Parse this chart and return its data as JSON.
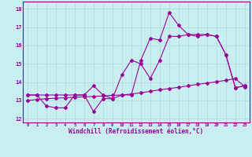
{
  "title": "",
  "xlabel": "Windchill (Refroidissement éolien,°C)",
  "bg_color": "#c8eef0",
  "grid_color": "#b0d8da",
  "line_color": "#990099",
  "x_values": [
    0,
    1,
    2,
    3,
    4,
    5,
    6,
    7,
    8,
    9,
    10,
    11,
    12,
    13,
    14,
    15,
    16,
    17,
    18,
    19,
    20,
    21,
    22,
    23
  ],
  "line1_y": [
    13.3,
    13.3,
    12.7,
    12.6,
    12.6,
    13.3,
    13.3,
    12.4,
    13.1,
    13.1,
    13.3,
    13.3,
    15.2,
    16.4,
    16.3,
    17.8,
    17.1,
    16.6,
    16.6,
    16.6,
    16.5,
    15.5,
    13.7,
    13.8
  ],
  "line2_y": [
    13.3,
    13.3,
    13.3,
    13.3,
    13.3,
    13.3,
    13.3,
    13.8,
    13.3,
    13.1,
    14.4,
    15.2,
    15.0,
    14.2,
    15.2,
    16.5,
    16.5,
    16.6,
    16.5,
    16.6,
    16.5,
    15.5,
    13.7,
    13.8
  ],
  "line3_y": [
    13.0,
    13.05,
    13.1,
    13.12,
    13.15,
    13.18,
    13.2,
    13.22,
    13.25,
    13.28,
    13.3,
    13.35,
    13.42,
    13.5,
    13.58,
    13.65,
    13.72,
    13.8,
    13.88,
    13.95,
    14.02,
    14.1,
    14.2,
    13.75
  ],
  "ylim": [
    11.8,
    18.4
  ],
  "yticks": [
    12,
    13,
    14,
    15,
    16,
    17,
    18
  ],
  "xlim": [
    -0.5,
    23.5
  ],
  "xticks": [
    0,
    1,
    2,
    3,
    4,
    5,
    6,
    7,
    8,
    9,
    10,
    11,
    12,
    13,
    14,
    15,
    16,
    17,
    18,
    19,
    20,
    21,
    22,
    23
  ]
}
